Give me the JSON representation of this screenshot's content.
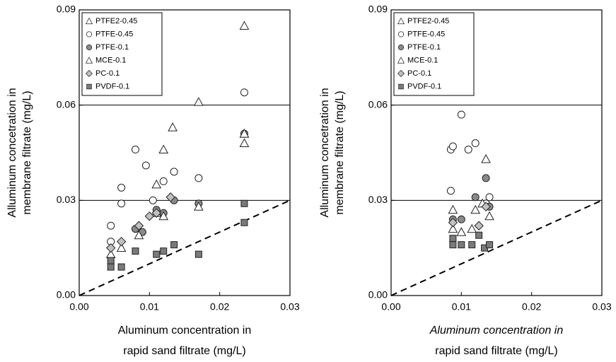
{
  "chart_data": [
    {
      "type": "scatter",
      "y_label": [
        "Alluminum concetration in",
        "membrane filtrate (mg/L)"
      ],
      "x_label": [
        "Aluminum concentration in",
        "rapid sand filtrate (mg/L)"
      ],
      "xlim": [
        0,
        0.03
      ],
      "ylim": [
        0,
        0.09
      ],
      "xticks": [
        {
          "value": 0,
          "label": "0.00"
        },
        {
          "value": 0.01,
          "label": "0.01"
        },
        {
          "value": 0.02,
          "label": "0.02"
        },
        {
          "value": 0.03,
          "label": "0.03"
        }
      ],
      "yticks": [
        {
          "value": 0,
          "label": "0.00"
        },
        {
          "value": 0.03,
          "label": "0.03"
        },
        {
          "value": 0.06,
          "label": "0.06"
        },
        {
          "value": 0.09,
          "label": "0.09"
        }
      ],
      "hlines": [
        0.03,
        0.06
      ],
      "diagonal": true,
      "legend": "upper left",
      "series": [
        {
          "name": "PTFE2-0.45",
          "marker": "triangle",
          "color": "#ffffff",
          "x": [
            0.0235,
            0.017,
            0.0133,
            0.012,
            0.011,
            0.0235
          ],
          "values": [
            0.085,
            0.061,
            0.053,
            0.046,
            0.035,
            0.051
          ]
        },
        {
          "name": "PTFE-0.45",
          "marker": "circle",
          "color": "#ffffff",
          "x": [
            0.0045,
            0.0045,
            0.006,
            0.006,
            0.008,
            0.0095,
            0.0105,
            0.012,
            0.0135,
            0.017,
            0.0235
          ],
          "values": [
            0.022,
            0.017,
            0.034,
            0.029,
            0.046,
            0.041,
            0.03,
            0.036,
            0.039,
            0.037,
            0.064
          ]
        },
        {
          "name": "PTFE-0.1",
          "marker": "circle",
          "color": "#8a8a8a",
          "x": [
            0.008,
            0.009,
            0.011,
            0.012,
            0.0135,
            0.017,
            0.0235
          ],
          "values": [
            0.021,
            0.02,
            0.027,
            0.026,
            0.03,
            0.029,
            0.051
          ]
        },
        {
          "name": "MCE-0.1",
          "marker": "triangle",
          "color": "#ffffff",
          "x": [
            0.0045,
            0.006,
            0.0085,
            0.011,
            0.012,
            0.017,
            0.0235,
            0.0235
          ],
          "values": [
            0.013,
            0.015,
            0.019,
            0.026,
            0.025,
            0.028,
            0.048,
            0.051
          ]
        },
        {
          "name": "PC-0.1",
          "marker": "diamond",
          "color": "#c0c0c0",
          "x": [
            0.0045,
            0.006,
            0.0085,
            0.01,
            0.011,
            0.013
          ],
          "values": [
            0.015,
            0.017,
            0.022,
            0.025,
            0.026,
            0.031
          ]
        },
        {
          "name": "PVDF-0.1",
          "marker": "square",
          "color": "#7a7a7a",
          "x": [
            0.0045,
            0.0045,
            0.006,
            0.008,
            0.011,
            0.012,
            0.0135,
            0.017,
            0.0235,
            0.0235
          ],
          "values": [
            0.009,
            0.011,
            0.009,
            0.014,
            0.013,
            0.014,
            0.016,
            0.013,
            0.023,
            0.029
          ]
        }
      ]
    },
    {
      "type": "scatter",
      "y_label": [
        "Alluminum concetration in",
        "membrane filtrate (mg/L)"
      ],
      "x_label": [
        "Aluminum concentration in",
        "rapid sand filtrate (mg/L)"
      ],
      "xlim": [
        0,
        0.03
      ],
      "ylim": [
        0,
        0.09
      ],
      "xticks": [
        {
          "value": 0,
          "label": "0.00"
        },
        {
          "value": 0.01,
          "label": "0.01"
        },
        {
          "value": 0.02,
          "label": "0.02"
        },
        {
          "value": 0.03,
          "label": "0.03"
        }
      ],
      "yticks": [
        {
          "value": 0,
          "label": "0.00"
        },
        {
          "value": 0.03,
          "label": "0.03"
        },
        {
          "value": 0.06,
          "label": "0.06"
        },
        {
          "value": 0.09,
          "label": "0.09"
        }
      ],
      "hlines": [
        0.03,
        0.06
      ],
      "diagonal": true,
      "legend": "upper left",
      "series": [
        {
          "name": "PTFE2-0.45",
          "marker": "triangle",
          "color": "#ffffff",
          "x": [
            0.0135
          ],
          "values": [
            0.043
          ]
        },
        {
          "name": "PTFE-0.45",
          "marker": "circle",
          "color": "#ffffff",
          "x": [
            0.0085,
            0.0088,
            0.0085,
            0.01,
            0.011,
            0.012,
            0.0135,
            0.014
          ],
          "values": [
            0.046,
            0.047,
            0.033,
            0.057,
            0.046,
            0.048,
            0.029,
            0.031
          ]
        },
        {
          "name": "PTFE-0.1",
          "marker": "circle",
          "color": "#8a8a8a",
          "x": [
            0.0088,
            0.01,
            0.012,
            0.0135,
            0.014
          ],
          "values": [
            0.024,
            0.024,
            0.031,
            0.037,
            0.028
          ]
        },
        {
          "name": "MCE-0.1",
          "marker": "triangle",
          "color": "#ffffff",
          "x": [
            0.0088,
            0.0088,
            0.01,
            0.0115,
            0.012,
            0.014,
            0.013
          ],
          "values": [
            0.027,
            0.021,
            0.02,
            0.021,
            0.027,
            0.025,
            0.029
          ]
        },
        {
          "name": "PC-0.1",
          "marker": "diamond",
          "color": "#c0c0c0",
          "x": [
            0.0088,
            0.0135,
            0.0125
          ],
          "values": [
            0.023,
            0.028,
            0.022
          ]
        },
        {
          "name": "PVDF-0.1",
          "marker": "square",
          "color": "#7a7a7a",
          "x": [
            0.0088,
            0.0088,
            0.01,
            0.0115,
            0.0125,
            0.0133,
            0.014
          ],
          "values": [
            0.018,
            0.016,
            0.016,
            0.016,
            0.019,
            0.015,
            0.016
          ]
        }
      ]
    }
  ]
}
